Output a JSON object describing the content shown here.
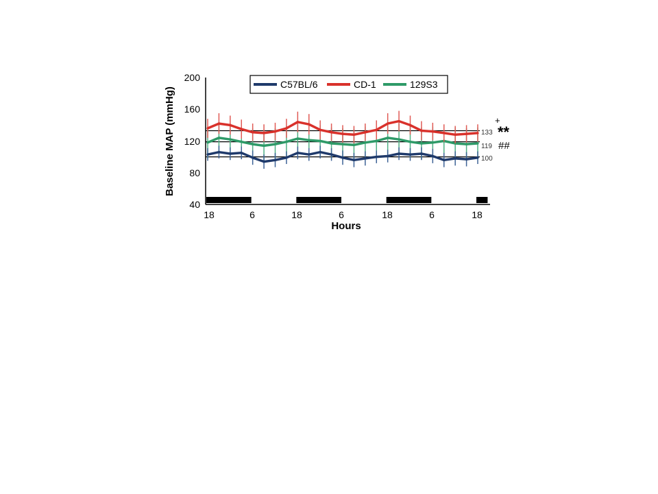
{
  "chart_data": {
    "type": "line",
    "title": "",
    "xlabel": "Hours",
    "ylabel": "Baseline MAP (mmHg)",
    "ylim": [
      40,
      200
    ],
    "yticks": [
      "40",
      "80",
      "120",
      "160",
      "200"
    ],
    "xtick_labels": [
      "18",
      "6",
      "18",
      "6",
      "18",
      "6",
      "18"
    ],
    "grid": false,
    "legend_position": "top",
    "dark_periods": [
      [
        0,
        12
      ],
      [
        24,
        36
      ],
      [
        48,
        60
      ],
      [
        72,
        75
      ]
    ],
    "reference_lines": [
      {
        "value": 133,
        "label": "133",
        "mark": "**",
        "extra": "+"
      },
      {
        "value": 119,
        "label": "119",
        "mark": "##",
        "extra": ""
      },
      {
        "value": 100,
        "label": "100",
        "mark": "",
        "extra": ""
      }
    ],
    "series": [
      {
        "name": "C57BL/6",
        "color": "#1f3a6b",
        "error_color": "#3d6296",
        "x": [
          0,
          3,
          6,
          9,
          12,
          15,
          18,
          21,
          24,
          27,
          30,
          33,
          36,
          39,
          42,
          45,
          48,
          51,
          54,
          57,
          60,
          63,
          66,
          69,
          72
        ],
        "values": [
          103,
          106,
          104,
          105,
          99,
          94,
          96,
          99,
          105,
          103,
          106,
          103,
          99,
          96,
          98,
          100,
          101,
          104,
          103,
          104,
          101,
          96,
          98,
          97,
          99
        ],
        "errors": [
          8,
          8,
          8,
          8,
          9,
          9,
          9,
          8,
          8,
          8,
          8,
          8,
          9,
          9,
          9,
          8,
          8,
          8,
          8,
          8,
          9,
          9,
          9,
          9,
          8
        ]
      },
      {
        "name": "CD-1",
        "color": "#d9312b",
        "error_color": "#e05a55",
        "x": [
          0,
          3,
          6,
          9,
          12,
          15,
          18,
          21,
          24,
          27,
          30,
          33,
          36,
          39,
          42,
          45,
          48,
          51,
          54,
          57,
          60,
          63,
          66,
          69,
          72
        ],
        "values": [
          136,
          142,
          140,
          135,
          131,
          130,
          132,
          136,
          144,
          141,
          134,
          131,
          129,
          128,
          131,
          134,
          142,
          145,
          140,
          133,
          132,
          130,
          128,
          129,
          130
        ],
        "errors": [
          12,
          13,
          12,
          12,
          11,
          11,
          11,
          12,
          13,
          13,
          12,
          11,
          11,
          11,
          11,
          12,
          13,
          13,
          12,
          12,
          11,
          11,
          11,
          11,
          11
        ]
      },
      {
        "name": "129S3",
        "color": "#2e9a68",
        "error_color": "#4fb083",
        "x": [
          0,
          3,
          6,
          9,
          12,
          15,
          18,
          21,
          24,
          27,
          30,
          33,
          36,
          39,
          42,
          45,
          48,
          51,
          54,
          57,
          60,
          63,
          66,
          69,
          72
        ],
        "values": [
          118,
          124,
          122,
          119,
          116,
          114,
          116,
          119,
          123,
          121,
          120,
          117,
          116,
          115,
          118,
          120,
          124,
          122,
          119,
          117,
          118,
          120,
          117,
          116,
          117
        ],
        "errors": [
          20,
          20,
          20,
          20,
          20,
          20,
          20,
          20,
          20,
          20,
          20,
          20,
          20,
          20,
          20,
          20,
          20,
          20,
          20,
          20,
          20,
          20,
          20,
          20,
          20
        ]
      }
    ]
  }
}
